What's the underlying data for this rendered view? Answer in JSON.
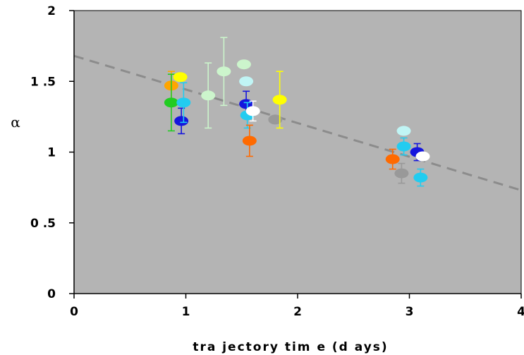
{
  "chart_data": {
    "type": "scatter",
    "xlabel": "tra jectory tim e (d ays)",
    "ylabel": "α",
    "xlim": [
      0,
      4
    ],
    "ylim": [
      0,
      2
    ],
    "x_ticks": [
      "0",
      "1",
      "2",
      "3",
      "4"
    ],
    "y_ticks": [
      "0",
      "0 .5",
      "1",
      "1 .5",
      "2"
    ],
    "plot_background": "#b4b4b4",
    "grid": false,
    "trendline": {
      "style": "dashed",
      "color": "#8c8c8c",
      "x": [
        0,
        4
      ],
      "y": [
        1.68,
        0.73
      ]
    },
    "points": [
      {
        "x": 0.87,
        "y": 1.47,
        "err": 0.1,
        "color": "#ffa500"
      },
      {
        "x": 0.87,
        "y": 1.35,
        "err": 0.2,
        "color": "#22cc22"
      },
      {
        "x": 0.95,
        "y": 1.53,
        "err": 0.0,
        "color": "#ffff00"
      },
      {
        "x": 0.96,
        "y": 1.22,
        "err": 0.09,
        "color": "#1515dd"
      },
      {
        "x": 0.98,
        "y": 1.35,
        "err": 0.14,
        "color": "#22ccf0"
      },
      {
        "x": 1.2,
        "y": 1.4,
        "err": 0.23,
        "color": "#ccf5cc"
      },
      {
        "x": 1.34,
        "y": 1.57,
        "err": 0.24,
        "color": "#ccf5cc"
      },
      {
        "x": 1.52,
        "y": 1.62,
        "err": 0.0,
        "color": "#ccf5cc"
      },
      {
        "x": 1.54,
        "y": 1.5,
        "err": 0.0,
        "color": "#c0f5f5"
      },
      {
        "x": 1.54,
        "y": 1.34,
        "err": 0.09,
        "color": "#1515dd"
      },
      {
        "x": 1.55,
        "y": 1.26,
        "err": 0.09,
        "color": "#22ccf0"
      },
      {
        "x": 1.57,
        "y": 1.08,
        "err": 0.11,
        "color": "#ff6a00"
      },
      {
        "x": 1.6,
        "y": 1.29,
        "err": 0.07,
        "color": "#ffffff"
      },
      {
        "x": 1.8,
        "y": 1.23,
        "err": 0.0,
        "color": "#999999"
      },
      {
        "x": 1.84,
        "y": 1.37,
        "err": 0.2,
        "color": "#ffff00"
      },
      {
        "x": 2.85,
        "y": 0.95,
        "err": 0.07,
        "color": "#ff6a00"
      },
      {
        "x": 2.93,
        "y": 0.85,
        "err": 0.07,
        "color": "#999999"
      },
      {
        "x": 2.95,
        "y": 1.15,
        "err": 0.0,
        "color": "#c0f5f5"
      },
      {
        "x": 2.95,
        "y": 1.04,
        "err": 0.06,
        "color": "#22ccf0"
      },
      {
        "x": 3.07,
        "y": 1.0,
        "err": 0.06,
        "color": "#1515dd"
      },
      {
        "x": 3.1,
        "y": 0.82,
        "err": 0.06,
        "color": "#22ccf0"
      },
      {
        "x": 3.12,
        "y": 0.97,
        "err": 0.0,
        "color": "#ffffff"
      }
    ]
  }
}
